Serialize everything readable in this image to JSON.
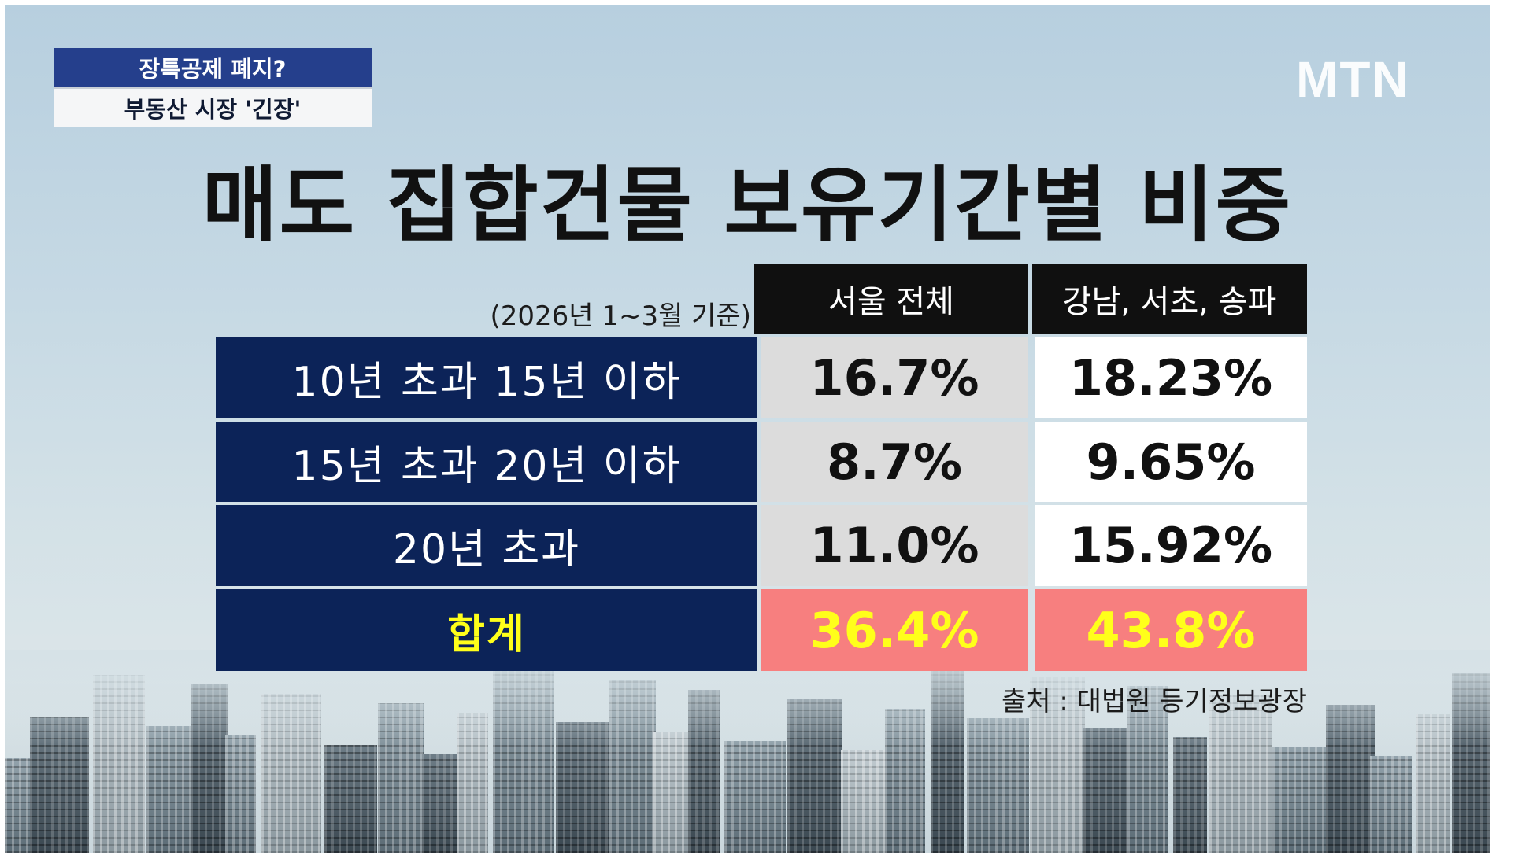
{
  "caption": {
    "line1": "장특공제 폐지?",
    "line2": "부동산 시장 '긴장'"
  },
  "logo": "MTN",
  "title": "매도 집합건물 보유기간별 비중",
  "basis": "(2026년 1~3월 기준)",
  "columns": [
    "서울 전체",
    "강남, 서초, 송파"
  ],
  "rows": [
    {
      "label": "10년 초과 15년 이하",
      "seoul": "16.7%",
      "gangnam": "18.23%"
    },
    {
      "label": "15년 초과 20년 이하",
      "seoul": "8.7%",
      "gangnam": "9.65%"
    },
    {
      "label": "20년 초과",
      "seoul": "11.0%",
      "gangnam": "15.92%"
    }
  ],
  "total": {
    "label": "합계",
    "seoul": "36.4%",
    "gangnam": "43.8%"
  },
  "source": "출처 : 대법원 등기정보광장",
  "colors": {
    "row_label_bg": "#0c2358",
    "header_bg": "#101010",
    "caption_bg": "#253f8c",
    "total_bg": "#f77f7f",
    "total_text": "#ffff1a"
  }
}
